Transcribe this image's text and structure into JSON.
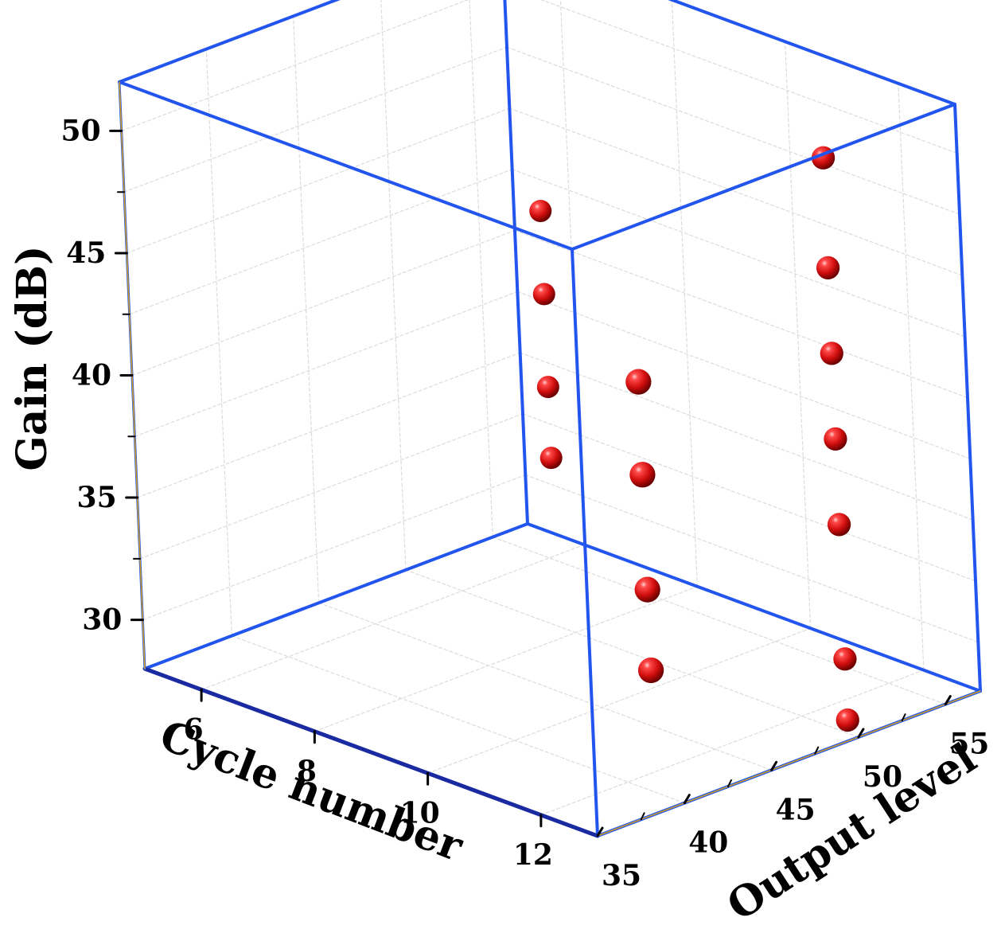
{
  "chart_data": {
    "type": "scatter",
    "xlabel": "Cycle number",
    "ylabel": "Output level",
    "zlabel": "Gain (dB)",
    "xlim": [
      5,
      13
    ],
    "ylim": [
      35,
      57
    ],
    "zlim": [
      28,
      52
    ],
    "x_ticks": [
      "6",
      "8",
      "10",
      "12"
    ],
    "y_ticks": [
      "35",
      "40",
      "45",
      "50",
      "55"
    ],
    "z_ticks": [
      "30",
      "35",
      "40",
      "45",
      "50"
    ],
    "grid": true,
    "box_color": "#2255ee",
    "axis_accent_color": "#d4a020",
    "marker_color": "#dd1111",
    "points": [
      {
        "x": 7.0,
        "y": 52.2,
        "z": 43.8
      },
      {
        "x": 7.0,
        "y": 52.2,
        "z": 40.4
      },
      {
        "x": 7.0,
        "y": 52.2,
        "z": 36.6
      },
      {
        "x": 7.0,
        "y": 52.2,
        "z": 33.7
      },
      {
        "x": 12.5,
        "y": 51.0,
        "z": 51.0
      },
      {
        "x": 12.5,
        "y": 51.0,
        "z": 46.5
      },
      {
        "x": 12.5,
        "y": 51.0,
        "z": 43.0
      },
      {
        "x": 12.5,
        "y": 51.0,
        "z": 39.5
      },
      {
        "x": 12.5,
        "y": 51.0,
        "z": 36.0
      },
      {
        "x": 12.5,
        "y": 51.0,
        "z": 30.5
      },
      {
        "x": 12.5,
        "y": 51.0,
        "z": 28.0
      },
      {
        "x": 12.5,
        "y": 40.0,
        "z": 44.8
      },
      {
        "x": 12.5,
        "y": 40.0,
        "z": 41.0
      },
      {
        "x": 12.5,
        "y": 40.0,
        "z": 36.3
      },
      {
        "x": 12.5,
        "y": 40.0,
        "z": 33.0
      }
    ]
  }
}
